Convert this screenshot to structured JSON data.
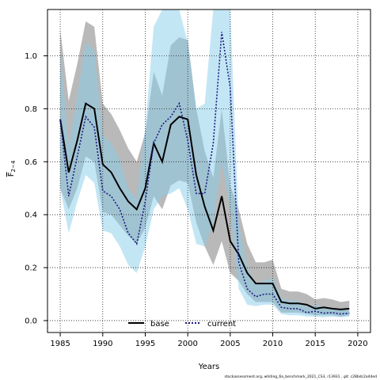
{
  "chart_data": {
    "type": "line",
    "xlabel": "Years",
    "ylabel": "F",
    "ylabel_sub": "2−4",
    "xlim": [
      1983.5,
      2021.5
    ],
    "ylim": [
      -0.045,
      1.175
    ],
    "x_ticks": [
      1985,
      1990,
      1995,
      2000,
      2005,
      2010,
      2015,
      2020
    ],
    "y_ticks": [
      0.0,
      0.2,
      0.4,
      0.6,
      0.8,
      1.0
    ],
    "x_tick_labels": [
      "1985",
      "1990",
      "1995",
      "2000",
      "2005",
      "2010",
      "2015",
      "2020"
    ],
    "y_tick_labels": [
      "0.0",
      "0.2",
      "0.4",
      "0.6",
      "0.8",
      "1.0"
    ],
    "grid": true,
    "legend_position": "bottom-center",
    "x": [
      1985,
      1986,
      1987,
      1988,
      1989,
      1990,
      1991,
      1992,
      1993,
      1994,
      1995,
      1996,
      1997,
      1998,
      1999,
      2000,
      2001,
      2002,
      2003,
      2004,
      2005,
      2006,
      2007,
      2008,
      2009,
      2010,
      2011,
      2012,
      2013,
      2014,
      2015,
      2016,
      2017,
      2018,
      2019
    ],
    "series": [
      {
        "name": "base",
        "color": "#000000",
        "band_color": "#808080",
        "values": [
          0.76,
          0.56,
          0.68,
          0.82,
          0.8,
          0.59,
          0.56,
          0.5,
          0.45,
          0.42,
          0.5,
          0.67,
          0.6,
          0.74,
          0.77,
          0.76,
          0.55,
          0.43,
          0.34,
          0.47,
          0.3,
          0.25,
          0.18,
          0.14,
          0.14,
          0.14,
          0.07,
          0.065,
          0.065,
          0.06,
          0.045,
          0.05,
          0.045,
          0.042,
          0.045
        ],
        "lower": [
          0.5,
          0.42,
          0.5,
          0.62,
          0.6,
          0.41,
          0.4,
          0.36,
          0.32,
          0.29,
          0.35,
          0.47,
          0.42,
          0.51,
          0.53,
          0.52,
          0.37,
          0.28,
          0.21,
          0.3,
          0.18,
          0.15,
          0.1,
          0.07,
          0.07,
          0.07,
          0.03,
          0.03,
          0.03,
          0.025,
          0.02,
          0.02,
          0.02,
          0.015,
          0.02
        ],
        "upper": [
          1.1,
          0.83,
          0.97,
          1.13,
          1.11,
          0.82,
          0.78,
          0.72,
          0.65,
          0.6,
          0.71,
          0.94,
          0.85,
          1.04,
          1.07,
          1.06,
          0.8,
          0.64,
          0.54,
          0.8,
          0.51,
          0.42,
          0.29,
          0.22,
          0.22,
          0.23,
          0.12,
          0.11,
          0.11,
          0.1,
          0.08,
          0.085,
          0.08,
          0.07,
          0.075
        ]
      },
      {
        "name": "current",
        "color": "#1a1a80",
        "band_color": "#87ceeb",
        "values": [
          0.76,
          0.47,
          0.62,
          0.77,
          0.73,
          0.49,
          0.47,
          0.42,
          0.33,
          0.29,
          0.45,
          0.67,
          0.74,
          0.77,
          0.82,
          0.68,
          0.48,
          0.48,
          0.67,
          1.09,
          0.88,
          0.22,
          0.12,
          0.09,
          0.1,
          0.1,
          0.05,
          0.045,
          0.045,
          0.03,
          0.035,
          0.028,
          0.03,
          0.025,
          0.028
        ],
        "lower": [
          0.5,
          0.33,
          0.45,
          0.55,
          0.52,
          0.34,
          0.33,
          0.28,
          0.21,
          0.18,
          0.28,
          0.42,
          0.47,
          0.48,
          0.5,
          0.42,
          0.29,
          0.28,
          0.37,
          0.6,
          0.42,
          0.12,
          0.06,
          0.055,
          0.06,
          0.06,
          0.025,
          0.02,
          0.02,
          0.015,
          0.015,
          0.012,
          0.015,
          0.012,
          0.015
        ],
        "upper": [
          1.02,
          0.66,
          0.85,
          1.05,
          1.02,
          0.7,
          0.67,
          0.61,
          0.5,
          0.46,
          0.73,
          1.11,
          1.18,
          1.18,
          1.18,
          1.05,
          0.8,
          0.82,
          1.18,
          1.18,
          1.18,
          0.37,
          0.2,
          0.14,
          0.15,
          0.16,
          0.085,
          0.075,
          0.075,
          0.05,
          0.06,
          0.048,
          0.05,
          0.042,
          0.046
        ]
      }
    ],
    "footer": "stockassessment.org,  whiting_6a_benchmark_2021_CS3,  r13931 ,  git: c28bdc2a44ed"
  }
}
